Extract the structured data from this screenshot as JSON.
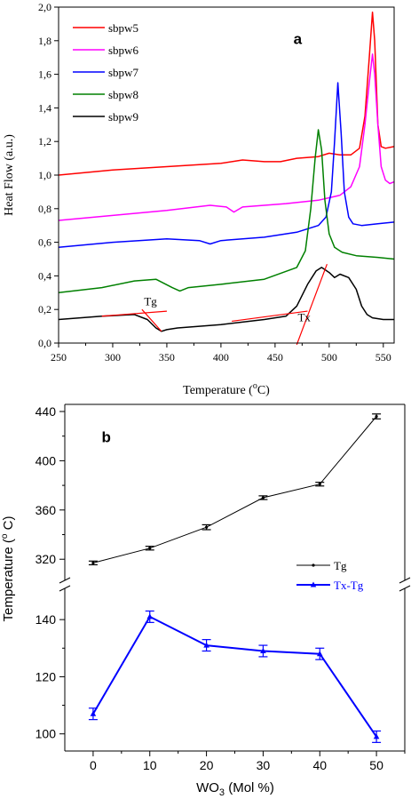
{
  "chart_data": [
    {
      "type": "line",
      "panel_label": "a",
      "xlabel": "Temperature (°C)",
      "xlabel_prefix": "Temperature (",
      "xlabel_deg": "o",
      "xlabel_suffix": "C)",
      "ylabel": "Heat Flow (a.u.)",
      "xlim": [
        250,
        560
      ],
      "ylim": [
        0.0,
        2.0
      ],
      "xticks": [
        250,
        300,
        350,
        400,
        450,
        500,
        550
      ],
      "yticks": [
        0.0,
        0.2,
        0.4,
        0.6,
        0.8,
        1.0,
        1.2,
        1.4,
        1.6,
        1.8,
        2.0
      ],
      "ytick_labels": [
        "0,0",
        "0,2",
        "0,4",
        "0,6",
        "0,8",
        "1,0",
        "1,2",
        "1,4",
        "1,6",
        "1,8",
        "2,0"
      ],
      "legend_position": "top-left",
      "annotations": [
        "Tg",
        "Tx"
      ],
      "series": [
        {
          "name": "sbpw5",
          "color": "#ff0000",
          "x": [
            250,
            300,
            350,
            400,
            420,
            440,
            455,
            470,
            490,
            500,
            510,
            520,
            528,
            533,
            537,
            540,
            542,
            545,
            548,
            552,
            560
          ],
          "y": [
            1.0,
            1.03,
            1.05,
            1.07,
            1.09,
            1.08,
            1.08,
            1.1,
            1.11,
            1.13,
            1.12,
            1.12,
            1.16,
            1.35,
            1.7,
            1.97,
            1.8,
            1.3,
            1.17,
            1.16,
            1.17
          ]
        },
        {
          "name": "sbpw6",
          "color": "#ff00ff",
          "x": [
            250,
            300,
            350,
            390,
            405,
            412,
            420,
            460,
            490,
            510,
            520,
            528,
            533,
            537,
            540,
            542,
            545,
            548,
            552,
            556,
            560
          ],
          "y": [
            0.73,
            0.76,
            0.79,
            0.82,
            0.81,
            0.78,
            0.81,
            0.83,
            0.85,
            0.88,
            0.93,
            1.05,
            1.3,
            1.55,
            1.72,
            1.6,
            1.3,
            1.05,
            0.97,
            0.95,
            0.96
          ]
        },
        {
          "name": "sbpw7",
          "color": "#0000ff",
          "x": [
            250,
            300,
            350,
            380,
            390,
            400,
            440,
            470,
            490,
            497,
            502,
            505,
            508,
            511,
            514,
            518,
            522,
            530,
            545,
            560
          ],
          "y": [
            0.57,
            0.6,
            0.62,
            0.61,
            0.59,
            0.61,
            0.63,
            0.66,
            0.7,
            0.75,
            0.9,
            1.2,
            1.55,
            1.25,
            0.9,
            0.75,
            0.71,
            0.7,
            0.71,
            0.72
          ]
        },
        {
          "name": "sbpw8",
          "color": "#008000",
          "x": [
            250,
            290,
            320,
            340,
            355,
            362,
            370,
            400,
            440,
            470,
            478,
            483,
            487,
            490,
            493,
            496,
            500,
            505,
            512,
            525,
            545,
            560
          ],
          "y": [
            0.3,
            0.33,
            0.37,
            0.38,
            0.33,
            0.31,
            0.33,
            0.35,
            0.38,
            0.45,
            0.55,
            0.8,
            1.1,
            1.27,
            1.15,
            0.85,
            0.65,
            0.57,
            0.54,
            0.52,
            0.51,
            0.5
          ]
        },
        {
          "name": "sbpw9",
          "color": "#000000",
          "x": [
            250,
            290,
            320,
            332,
            340,
            345,
            350,
            360,
            400,
            440,
            460,
            470,
            480,
            488,
            493,
            500,
            505,
            510,
            518,
            525,
            530,
            535,
            540,
            550,
            560
          ],
          "y": [
            0.14,
            0.16,
            0.17,
            0.14,
            0.09,
            0.07,
            0.08,
            0.09,
            0.11,
            0.14,
            0.16,
            0.22,
            0.35,
            0.43,
            0.45,
            0.42,
            0.39,
            0.41,
            0.39,
            0.32,
            0.22,
            0.17,
            0.15,
            0.14,
            0.14
          ]
        }
      ],
      "tangent_lines": [
        {
          "x": [
            290,
            350
          ],
          "y": [
            0.16,
            0.19
          ]
        },
        {
          "x": [
            327,
            345
          ],
          "y": [
            0.2,
            0.07
          ]
        },
        {
          "x": [
            410,
            480
          ],
          "y": [
            0.13,
            0.19
          ]
        },
        {
          "x": [
            470,
            498
          ],
          "y": [
            -0.01,
            0.47
          ]
        }
      ],
      "annotation_positions": [
        {
          "text": "Tg",
          "x": 329,
          "y": 0.225
        },
        {
          "text": "Tx",
          "x": 471,
          "y": 0.13
        }
      ],
      "panel_label_position": {
        "x": 467,
        "y": 1.78
      }
    },
    {
      "type": "line",
      "panel_label": "b",
      "xlabel": "WO3 (Mol %)",
      "xlabel_prefix": "WO",
      "xlabel_sub": "3",
      "xlabel_suffix": " (Mol %)",
      "ylabel": "Temperature (° C)",
      "ylabel_prefix": "Temperature (",
      "ylabel_deg": "o",
      "ylabel_suffix": " C)",
      "xlim": [
        -5,
        55
      ],
      "xticks": [
        0,
        10,
        20,
        30,
        40,
        50
      ],
      "axis_break": true,
      "upper_segment": {
        "ylim": [
          305,
          440
        ],
        "yticks": [
          320,
          360,
          400,
          440
        ]
      },
      "lower_segment": {
        "ylim": [
          94,
          150
        ],
        "yticks": [
          100,
          120,
          140
        ]
      },
      "legend_position": "right",
      "series": [
        {
          "name": "Tg",
          "segment": "upper",
          "color": "#000000",
          "x": [
            0,
            10,
            20,
            30,
            40,
            50
          ],
          "y": [
            317,
            329,
            346,
            370,
            381,
            436
          ],
          "err": [
            1.5,
            1.5,
            2,
            1.5,
            1.5,
            2
          ]
        },
        {
          "name": "Tx-Tg",
          "segment": "lower",
          "color": "#0000ff",
          "x": [
            0,
            10,
            20,
            30,
            40,
            50
          ],
          "y": [
            107,
            141,
            131,
            129,
            128,
            99
          ],
          "err": [
            2,
            2,
            2,
            2,
            2,
            2
          ]
        }
      ],
      "panel_label_position": {
        "x": 1.5,
        "y": 415
      }
    }
  ]
}
